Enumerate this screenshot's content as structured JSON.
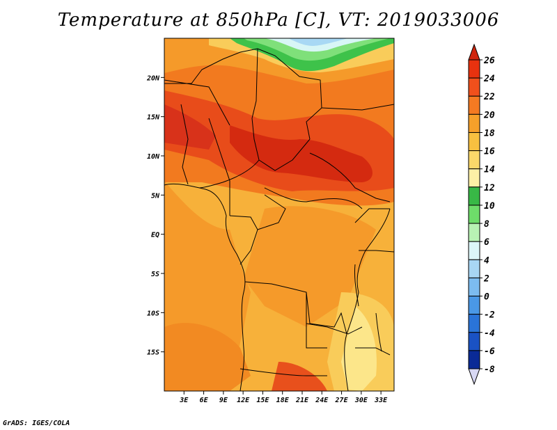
{
  "title": "Temperature at 850hPa [C], VT: 2019033006",
  "credit": "GrADS: IGES/COLA",
  "map": {
    "lon_range": [
      0,
      35
    ],
    "lat_range": [
      -20,
      25
    ],
    "lon_ticks": [
      "3E",
      "6E",
      "9E",
      "12E",
      "15E",
      "18E",
      "21E",
      "24E",
      "27E",
      "30E",
      "33E"
    ],
    "lon_tick_values": [
      3,
      6,
      9,
      12,
      15,
      18,
      21,
      24,
      27,
      30,
      33
    ],
    "lat_ticks": [
      "20N",
      "15N",
      "10N",
      "5N",
      "EQ",
      "5S",
      "10S",
      "15S"
    ],
    "lat_tick_values": [
      20,
      15,
      10,
      5,
      0,
      -5,
      -10,
      -15
    ],
    "field_colors": {
      "c26": "#e8320f",
      "c24": "#e84c1a",
      "c23": "#d42a10",
      "c22": "#f27a1f",
      "c21": "#f59a2a",
      "c20": "#f7b13a",
      "c18": "#f9cc5a",
      "c16": "#fce68a",
      "c14": "#fdf6c0",
      "c12": "#3ec24a",
      "c10": "#7fe07a",
      "c8": "#c6f2c0",
      "c6": "#d8f6f6",
      "c4": "#a8d8f4",
      "c2": "#7cbcf0"
    }
  },
  "colorbar": {
    "labels": [
      "26",
      "24",
      "22",
      "20",
      "18",
      "16",
      "14",
      "12",
      "10",
      "8",
      "6",
      "4",
      "2",
      "0",
      "-2",
      "-4",
      "-6",
      "-8"
    ],
    "colors": [
      "#e8320f",
      "#f0501c",
      "#f47a22",
      "#f6a02a",
      "#f8c040",
      "#fbd86a",
      "#fdf0a6",
      "#38b846",
      "#6edc6a",
      "#b8f2b4",
      "#dcf6f8",
      "#a8d6f4",
      "#7cbcf0",
      "#4a98e6",
      "#2a74d8",
      "#1a52c4",
      "#0a2a96",
      "#06106a"
    ],
    "top_arrow_color": "#d0260e",
    "bottom_arrow_color": "#d8d8f4"
  }
}
